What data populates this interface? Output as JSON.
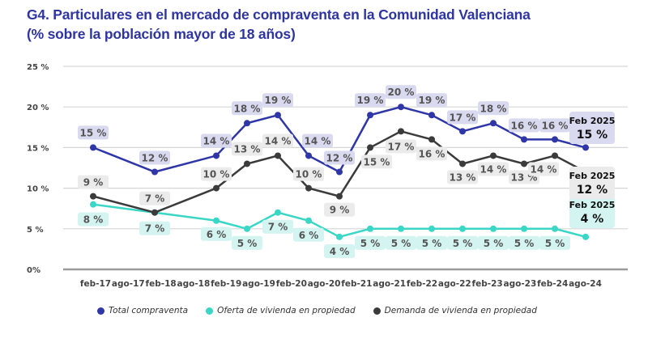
{
  "title_line1": "G4. Particulares en el mercado de compraventa en la Comunidad Valenciana",
  "title_line2": "(% sobre la población mayor de 18 años)",
  "chart_data": {
    "type": "line",
    "x_ticks": [
      "feb-17",
      "ago-17",
      "feb-18",
      "ago-18",
      "feb-19",
      "ago-19",
      "feb-20",
      "ago-20",
      "feb-21",
      "ago-21",
      "feb-22",
      "ago-22",
      "feb-23",
      "ago-23",
      "feb-24",
      "ago-24"
    ],
    "x": [
      "feb-17",
      "feb-18",
      "feb-19",
      "ago-19",
      "feb-20",
      "ago-20",
      "feb-21",
      "ago-21",
      "feb-22",
      "ago-22",
      "feb-23",
      "ago-23",
      "feb-24",
      "ago-24",
      "feb-25"
    ],
    "y_ticks": [
      "0%",
      "5 %",
      "10 %",
      "15 %",
      "20 %",
      "25 %"
    ],
    "ylim": [
      0,
      25
    ],
    "unit_suffix": " %",
    "grid": true,
    "legend_position": "bottom",
    "series": [
      {
        "name": "Total compraventa",
        "color": "#2e36a8",
        "label_bg": "#d9d9ef",
        "values": [
          15,
          12,
          14,
          18,
          19,
          14,
          12,
          19,
          20,
          19,
          17,
          18,
          16,
          16,
          15
        ]
      },
      {
        "name": "Oferta de vivienda en propiedad",
        "color": "#3ad6c6",
        "label_bg": "#d3f4f0",
        "values": [
          8,
          7,
          6,
          5,
          7,
          6,
          4,
          5,
          5,
          5,
          5,
          5,
          5,
          5,
          4
        ]
      },
      {
        "name": "Demanda de vivienda en propiedad",
        "color": "#3b3b3b",
        "label_bg": "#ebebeb",
        "values": [
          9,
          7,
          10,
          13,
          14,
          10,
          9,
          15,
          17,
          16,
          13,
          14,
          13,
          14,
          12
        ]
      }
    ],
    "final_callouts": [
      {
        "date": "Feb 2025",
        "value": "15 %"
      },
      {
        "date": "Feb 2025",
        "value": "4 %"
      },
      {
        "date": "Feb 2025",
        "value": "12 %"
      }
    ]
  }
}
